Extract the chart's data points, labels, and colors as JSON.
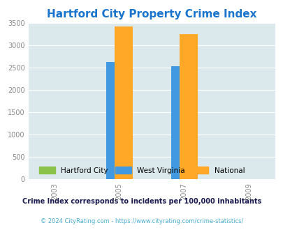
{
  "title": "Hartford City Property Crime Index",
  "title_color": "#1874CD",
  "title_fontsize": 11,
  "years": [
    2003,
    2005,
    2007,
    2009
  ],
  "bar_years": [
    2005,
    2007
  ],
  "hartford_city": [
    0,
    0
  ],
  "west_virginia": [
    2630,
    2530
  ],
  "national": [
    3420,
    3250
  ],
  "bar_colors": {
    "hartford_city": "#8BC34A",
    "west_virginia": "#4199E1",
    "national": "#FFA726"
  },
  "ylim": [
    0,
    3500
  ],
  "yticks": [
    0,
    500,
    1000,
    1500,
    2000,
    2500,
    3000,
    3500
  ],
  "bar_width": 0.55,
  "plot_bg_color": "#DCE9EC",
  "fig_bg_color": "#FFFFFF",
  "legend_labels": [
    "Hartford City",
    "West Virginia",
    "National"
  ],
  "footnote1": "Crime Index corresponds to incidents per 100,000 inhabitants",
  "footnote2": "© 2024 CityRating.com - https://www.cityrating.com/crime-statistics/",
  "footnote1_color": "#1a1a4e",
  "footnote2_color": "#4AABCC",
  "tick_fontsize": 7,
  "grid_color": "#FFFFFF",
  "tick_color": "#888888"
}
